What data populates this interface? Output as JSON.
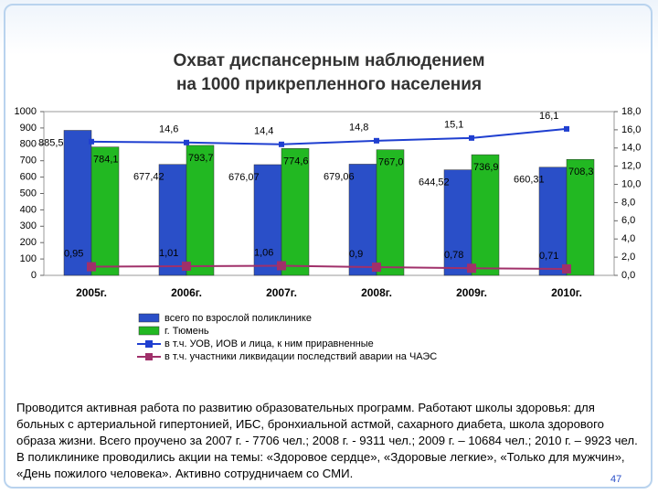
{
  "chart_data": {
    "type": "bar",
    "title": [
      "Охват диспансерным наблюдением",
      "на 1000 прикрепленного населения"
    ],
    "categories": [
      "2005г.",
      "2006г.",
      "2007г.",
      "2008г.",
      "2009г.",
      "2010г."
    ],
    "series": [
      {
        "name": "всего по взрослой поликлинике",
        "type": "bar",
        "color": "#2a4fc8",
        "values": [
          885.5,
          677.42,
          676.07,
          679.06,
          644.52,
          660.31
        ],
        "value_labels": [
          "885,5",
          "677,42",
          "676,07",
          "679,06",
          "644,52",
          "660,31"
        ]
      },
      {
        "name": "г. Тюмень",
        "type": "bar",
        "color": "#22b822",
        "values": [
          784.1,
          793.7,
          774.6,
          767.0,
          736.9,
          708.3
        ],
        "value_labels": [
          "784,1",
          "793,7",
          "774,6",
          "767,0",
          "736,9",
          "708,3"
        ]
      },
      {
        "name": "в т.ч. УОВ, ИОВ и лица, к ним приравненные",
        "type": "line",
        "axis": "y2",
        "color": "#1f3fd0",
        "values": [
          14.7,
          14.6,
          14.4,
          14.8,
          15.1,
          16.1
        ],
        "value_labels": [
          null,
          "14,6",
          "14,4",
          "14,8",
          "15,1",
          "16,1"
        ]
      },
      {
        "name": "в т.ч. участники ликвидации последствий аварии на ЧАЭС",
        "type": "line",
        "axis": "y2",
        "color": "#a0306a",
        "values": [
          0.95,
          1.01,
          1.06,
          0.9,
          0.78,
          0.71
        ],
        "value_labels": [
          "0,95",
          "1,01",
          "1,06",
          "0,9",
          "0,78",
          "0,71"
        ]
      }
    ],
    "ylim": [
      0,
      1000
    ],
    "yticks": [
      0,
      100,
      200,
      300,
      400,
      500,
      600,
      700,
      800,
      900,
      1000
    ],
    "y2lim": [
      0,
      18
    ],
    "y2ticks": [
      {
        "value": 0,
        "label": "0,0"
      },
      {
        "value": 2,
        "label": "2,0"
      },
      {
        "value": 4,
        "label": "4,0"
      },
      {
        "value": 6,
        "label": "6,0"
      },
      {
        "value": 8,
        "label": "8,0"
      },
      {
        "value": 10,
        "label": "10,0"
      },
      {
        "value": 12,
        "label": "12,0"
      },
      {
        "value": 14,
        "label": "14,0"
      },
      {
        "value": 16,
        "label": "16,0"
      },
      {
        "value": 18,
        "label": "18,0"
      }
    ]
  },
  "text": "Проводится активная работа по развитию образовательных программ. Работают школы здоровья: для больных с артериальной гипертонией, ИБС, бронхиальной астмой, сахарного диабета, школа здорового образа жизни. Всего проучено за 2007 г. - 7706 чел.; 2008 г. - 9311 чел.; 2009 г. – 10684 чел.; 2010 г. – 9923 чел. В поликлинике проводились акции на темы: «Здоровое сердце», «Здоровые легкие», «Только для мужчин», «День пожилого человека». Активно сотрудничаем со СМИ.",
  "page_number": "47"
}
